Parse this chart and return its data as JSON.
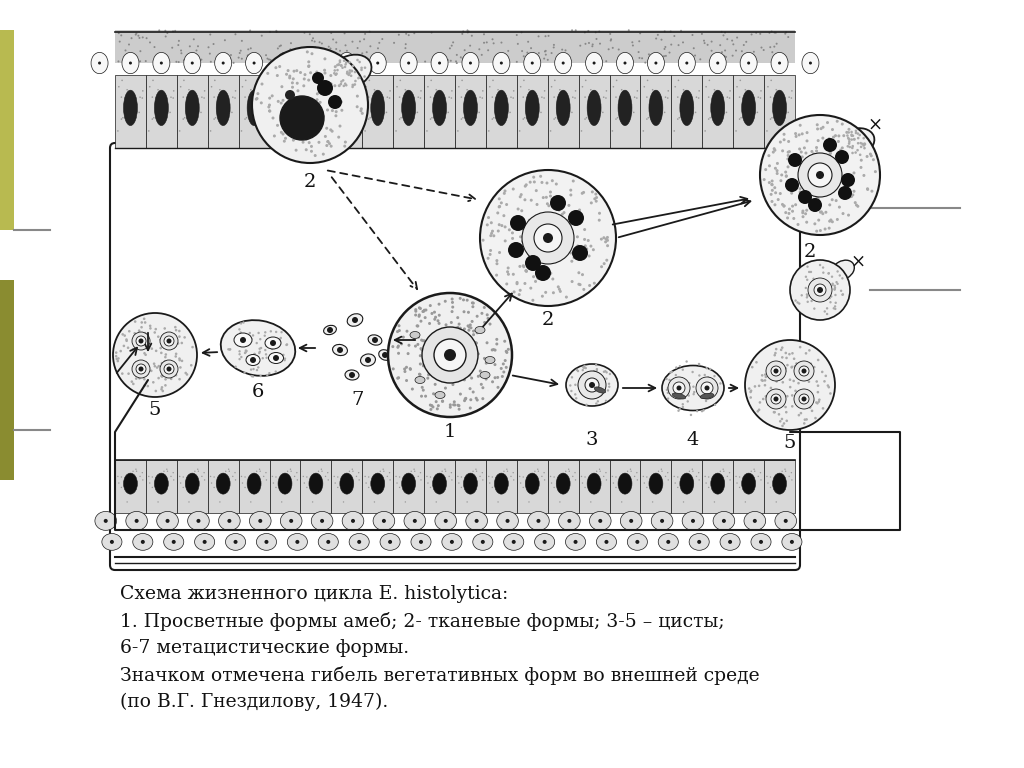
{
  "background_color": "#ffffff",
  "caption_lines": [
    "Схема жизненного цикла E. histolytica:",
    "1. Просветные формы амеб; 2- тканевые формы; 3-5 – цисты;",
    "6-7 метацистические формы.",
    "Значком отмечена гибель вегетативных форм во внешней среде",
    "(по В.Г. Гнездилову, 1947)."
  ],
  "caption_fontsize": 13.5,
  "label_fontsize": 14,
  "figsize": [
    10.24,
    7.68
  ],
  "dpi": 100,
  "text_color": "#111111",
  "line_color": "#1a1a1a",
  "stipple_color": "#aaaaaa",
  "dark_fill": "#2a2a2a",
  "mid_fill": "#555555",
  "light_fill": "#f5f5f5",
  "intestine_bg": "#d0d0d0",
  "olive1": "#b8ba50",
  "olive2": "#8a8c30"
}
